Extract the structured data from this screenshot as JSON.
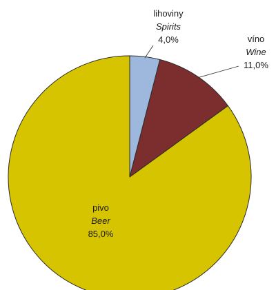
{
  "chart_data": {
    "type": "pie",
    "slices": [
      {
        "label_cz": "lihoviny",
        "label_en": "Spirits",
        "value": 4.0,
        "value_label": "4,0%",
        "color": "#9db8dc"
      },
      {
        "label_cz": "víno",
        "label_en": "Wine",
        "value": 11.0,
        "value_label": "11,0%",
        "color": "#7c2e2e"
      },
      {
        "label_cz": "pivo",
        "label_en": "Beer",
        "value": 85.0,
        "value_label": "85,0%",
        "color": "#d6c400"
      }
    ],
    "start_angle_deg": 0,
    "direction": "clockwise",
    "legend": "none"
  }
}
